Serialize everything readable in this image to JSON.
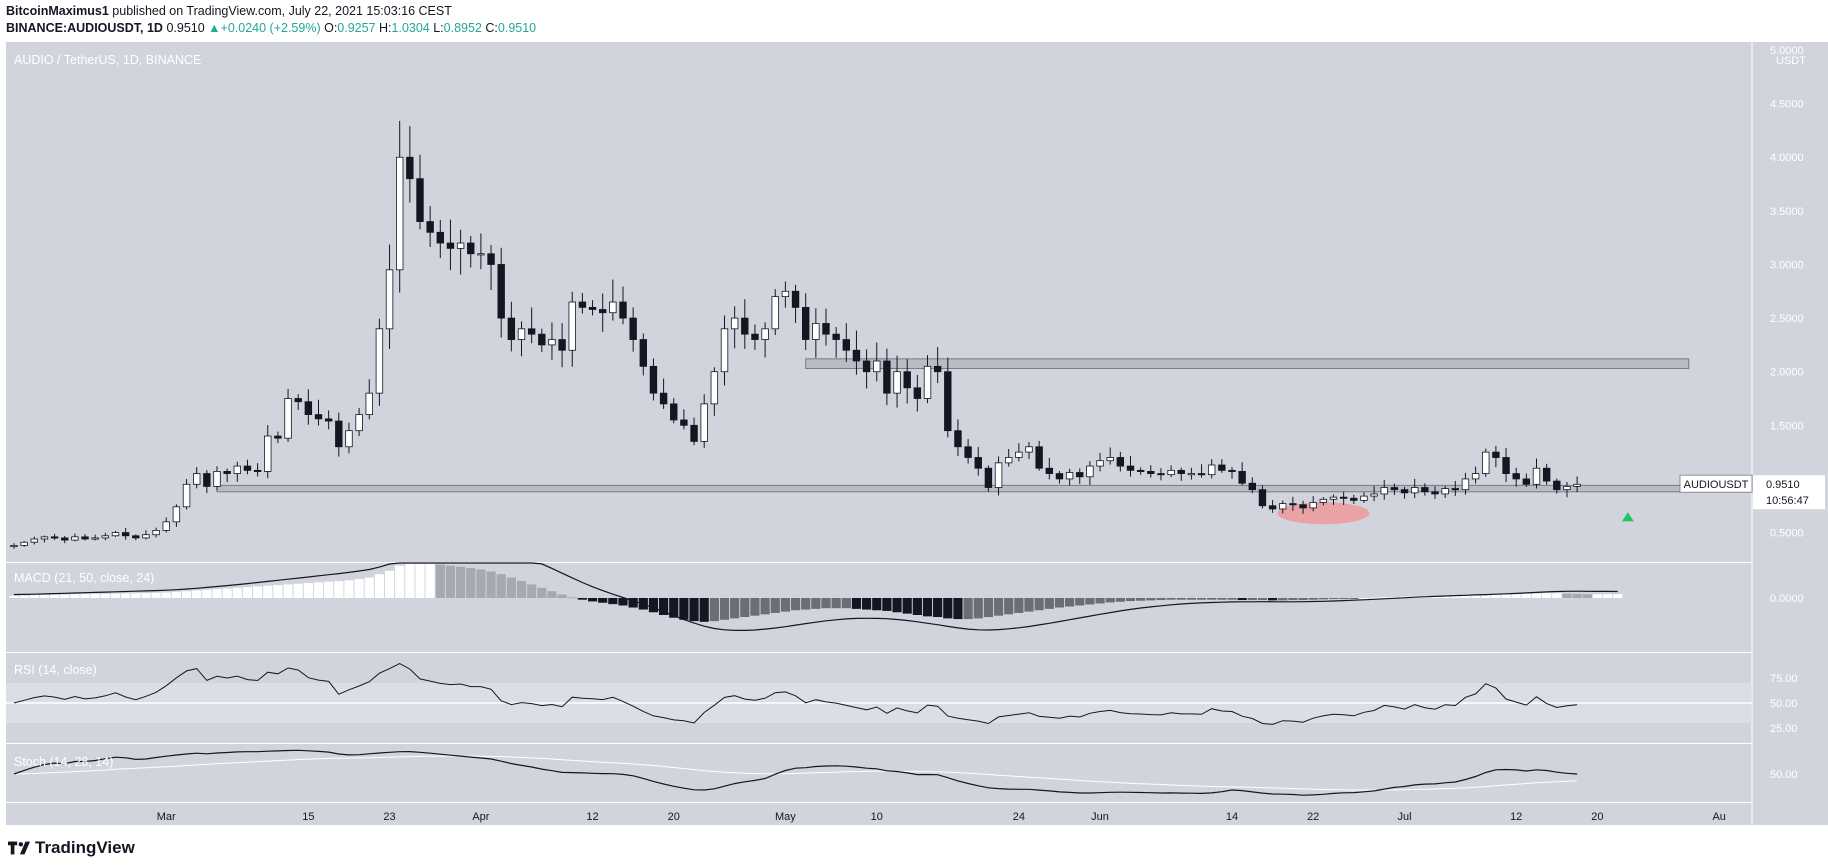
{
  "header": {
    "publisher": "BitcoinMaximus1",
    "published_text": "published on TradingView.com, July 22, 2021 15:03:16 CEST",
    "symbol": "BINANCE:AUDIOUSDT, 1D",
    "last": "0.9510",
    "change": "+0.0240 (+2.59%)",
    "o_label": "O:",
    "o": "0.9257",
    "h_label": "H:",
    "h": "1.0304",
    "l_label": "L:",
    "l": "0.8952",
    "c_label": "C:",
    "c": "0.9510"
  },
  "logo": "TradingView",
  "chart_data": [
    {
      "type": "candlestick",
      "title": "AUDIO / TetherUS, 1D, BINANCE",
      "ylabel": "USDT",
      "ylim": [
        0.3,
        5.0
      ],
      "y_ticks": [
        "5.0000",
        "4.5000",
        "4.0000",
        "3.5000",
        "3.0000",
        "2.5000",
        "2.0000",
        "1.5000",
        "1.0000",
        "0.5000"
      ],
      "x_ticks": [
        {
          "label": "Mar",
          "day": 15
        },
        {
          "label": "15",
          "day": 29
        },
        {
          "label": "23",
          "day": 37
        },
        {
          "label": "Apr",
          "day": 46
        },
        {
          "label": "12",
          "day": 57
        },
        {
          "label": "20",
          "day": 65
        },
        {
          "label": "May",
          "day": 76
        },
        {
          "label": "10",
          "day": 85
        },
        {
          "label": "24",
          "day": 99
        },
        {
          "label": "Jun",
          "day": 107
        },
        {
          "label": "14",
          "day": 120
        },
        {
          "label": "22",
          "day": 128
        },
        {
          "label": "Jul",
          "day": 137
        },
        {
          "label": "12",
          "day": 148
        },
        {
          "label": "20",
          "day": 156
        },
        {
          "label": "Au",
          "day": 168
        }
      ],
      "price_label": {
        "name": "AUDIOUSDT",
        "value": "0.9510",
        "countdown": "10:56:47"
      },
      "zones": [
        {
          "low": 2.03,
          "high": 2.12,
          "from_day": 78,
          "to_day": 165
        },
        {
          "low": 0.88,
          "high": 0.94,
          "from_day": 20,
          "to_day": 165
        }
      ],
      "highlight": {
        "center_day": 129,
        "price": 0.68
      },
      "arrow": {
        "day": 159,
        "price": 0.66
      },
      "close": [
        0.38,
        0.41,
        0.44,
        0.46,
        0.45,
        0.43,
        0.46,
        0.44,
        0.45,
        0.47,
        0.5,
        0.47,
        0.45,
        0.48,
        0.52,
        0.6,
        0.74,
        0.95,
        1.05,
        0.93,
        1.07,
        1.05,
        1.12,
        1.08,
        1.07,
        1.4,
        1.38,
        1.75,
        1.72,
        1.6,
        1.56,
        1.54,
        1.3,
        1.45,
        1.6,
        1.8,
        2.4,
        2.95,
        4.0,
        3.8,
        3.4,
        3.3,
        3.2,
        3.15,
        3.2,
        3.1,
        3.1,
        3.0,
        2.5,
        2.3,
        2.4,
        2.35,
        2.25,
        2.3,
        2.2,
        2.65,
        2.6,
        2.58,
        2.55,
        2.65,
        2.5,
        2.3,
        2.05,
        1.8,
        1.7,
        1.55,
        1.5,
        1.35,
        1.7,
        2.0,
        2.4,
        2.5,
        2.35,
        2.3,
        2.4,
        2.7,
        2.75,
        2.6,
        2.3,
        2.45,
        2.35,
        2.3,
        2.2,
        2.1,
        2.0,
        2.1,
        1.8,
        2.0,
        1.85,
        1.75,
        2.05,
        2.0,
        1.45,
        1.3,
        1.2,
        1.1,
        0.92,
        1.15,
        1.2,
        1.25,
        1.3,
        1.1,
        1.05,
        1.0,
        1.06,
        1.02,
        1.12,
        1.17,
        1.2,
        1.12,
        1.08,
        1.07,
        1.05,
        1.04,
        1.08,
        1.05,
        1.05,
        1.04,
        1.13,
        1.08,
        1.07,
        0.96,
        0.9,
        0.75,
        0.72,
        0.77,
        0.76,
        0.73,
        0.78,
        0.81,
        0.83,
        0.82,
        0.8,
        0.84,
        0.86,
        0.92,
        0.9,
        0.87,
        0.92,
        0.88,
        0.86,
        0.91,
        0.9,
        1.0,
        1.05,
        1.25,
        1.2,
        1.05,
        1.0,
        0.95,
        1.1,
        0.98,
        0.9,
        0.93,
        0.95
      ],
      "macd_title": "MACD (21, 50, close, 24)",
      "macd_hist": [
        0.06,
        0.07,
        0.08,
        0.09,
        0.1,
        0.1,
        0.11,
        0.11,
        0.12,
        0.12,
        0.13,
        0.13,
        0.14,
        0.14,
        0.15,
        0.16,
        0.18,
        0.2,
        0.22,
        0.24,
        0.26,
        0.28,
        0.3,
        0.32,
        0.34,
        0.36,
        0.38,
        0.4,
        0.42,
        0.44,
        0.46,
        0.48,
        0.5,
        0.52,
        0.56,
        0.6,
        0.7,
        0.8,
        0.95,
        1.0,
        1.0,
        1.0,
        0.98,
        0.95,
        0.92,
        0.88,
        0.84,
        0.78,
        0.7,
        0.6,
        0.5,
        0.4,
        0.3,
        0.2,
        0.1,
        0.02,
        -0.05,
        -0.1,
        -0.14,
        -0.18,
        -0.22,
        -0.28,
        -0.34,
        -0.42,
        -0.5,
        -0.58,
        -0.64,
        -0.68,
        -0.7,
        -0.68,
        -0.64,
        -0.6,
        -0.56,
        -0.52,
        -0.48,
        -0.44,
        -0.4,
        -0.36,
        -0.34,
        -0.32,
        -0.3,
        -0.3,
        -0.3,
        -0.32,
        -0.34,
        -0.36,
        -0.38,
        -0.42,
        -0.46,
        -0.5,
        -0.54,
        -0.56,
        -0.6,
        -0.62,
        -0.62,
        -0.6,
        -0.56,
        -0.52,
        -0.48,
        -0.44,
        -0.4,
        -0.36,
        -0.32,
        -0.28,
        -0.25,
        -0.22,
        -0.19,
        -0.16,
        -0.13,
        -0.11,
        -0.09,
        -0.08,
        -0.07,
        -0.06,
        -0.05,
        -0.05,
        -0.05,
        -0.05,
        -0.05,
        -0.05,
        -0.05,
        -0.06,
        -0.06,
        -0.06,
        -0.07,
        -0.07,
        -0.06,
        -0.06,
        -0.05,
        -0.04,
        -0.03,
        -0.02,
        -0.01,
        0.0,
        0.01,
        0.02,
        0.03,
        0.04,
        0.05,
        0.05,
        0.06,
        0.06,
        0.07,
        0.07,
        0.08,
        0.08,
        0.09,
        0.1,
        0.11,
        0.12,
        0.13,
        0.14,
        0.14,
        0.13,
        0.12,
        0.11,
        0.11,
        0.11,
        0.11
      ],
      "macd_y_label": "0.0000",
      "rsi_title": "RSI (14, close)",
      "rsi_ticks": [
        "75.00",
        "50.00",
        "25.00"
      ],
      "stoch_title": "Stoch (14, 28, 14)",
      "stoch_ticks": [
        "50.00"
      ]
    }
  ]
}
